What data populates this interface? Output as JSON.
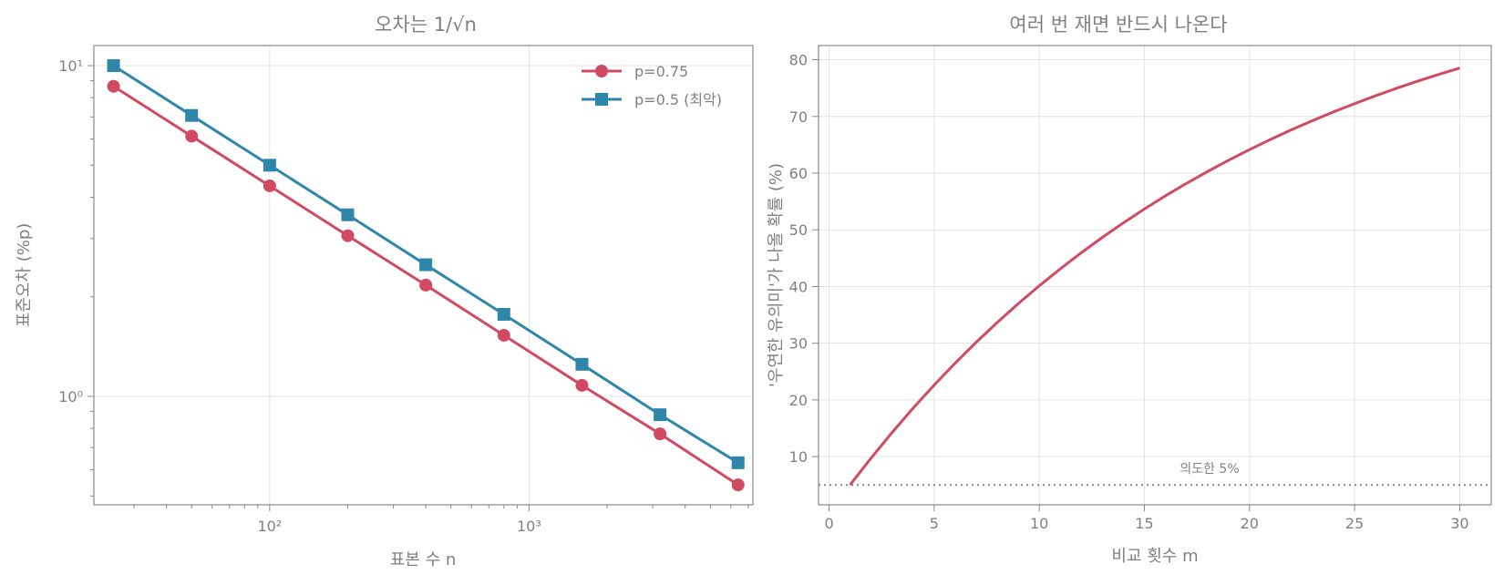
{
  "chart_data": [
    {
      "type": "line",
      "title": "오차는 1/√n",
      "xlabel": "표본 수 n",
      "ylabel": "표준오차 (%p)",
      "xscale": "log",
      "yscale": "log",
      "xlim": [
        21,
        7300
      ],
      "ylim": [
        0.47,
        11.5
      ],
      "xticks": [
        {
          "value": 100,
          "label": "10²"
        },
        {
          "value": 1000,
          "label": "10³"
        }
      ],
      "yticks": [
        {
          "value": 1,
          "label": "10⁰"
        },
        {
          "value": 10,
          "label": "10¹"
        }
      ],
      "grid": true,
      "legend": "top-right",
      "x": [
        25,
        50,
        100,
        200,
        400,
        800,
        1600,
        3200,
        6400
      ],
      "series": [
        {
          "name": "p=0.75",
          "color": "#d14a61",
          "marker": "circle",
          "values": [
            8.66,
            6.12,
            4.33,
            3.06,
            2.17,
            1.53,
            1.08,
            0.77,
            0.54
          ]
        },
        {
          "name": "p=0.5 (최악)",
          "color": "#2e86ab",
          "marker": "square",
          "values": [
            10.0,
            7.07,
            5.0,
            3.54,
            2.5,
            1.77,
            1.25,
            0.88,
            0.63
          ]
        }
      ]
    },
    {
      "type": "line",
      "title": "여러 번 재면 반드시 나온다",
      "xlabel": "비교 횟수 m",
      "ylabel": "'우연한 유의미'가 나올 확률 (%)",
      "xlim": [
        -0.5,
        31.5
      ],
      "ylim": [
        1.5,
        82.5
      ],
      "xticks": [
        0,
        5,
        10,
        15,
        20,
        25,
        30
      ],
      "yticks": [
        10,
        20,
        30,
        40,
        50,
        60,
        70,
        80
      ],
      "grid": true,
      "series": [
        {
          "color": "#d14a61",
          "formula": "100*(1-0.95^m)",
          "x": [
            1,
            2,
            3,
            4,
            5,
            6,
            7,
            8,
            9,
            10,
            11,
            12,
            13,
            14,
            15,
            16,
            17,
            18,
            19,
            20,
            21,
            22,
            23,
            24,
            25,
            26,
            27,
            28,
            29,
            30
          ],
          "values": [
            5.0,
            9.75,
            14.26,
            18.55,
            22.62,
            26.49,
            30.17,
            33.66,
            36.98,
            40.13,
            43.12,
            45.96,
            48.67,
            51.23,
            53.67,
            55.99,
            58.19,
            60.28,
            62.26,
            64.15,
            65.94,
            67.65,
            69.27,
            70.8,
            72.26,
            73.65,
            74.97,
            76.22,
            77.41,
            78.54
          ]
        }
      ],
      "reference_line": {
        "y": 5,
        "label": "의도한 5%",
        "style": "dotted",
        "color": "#888888"
      }
    }
  ]
}
